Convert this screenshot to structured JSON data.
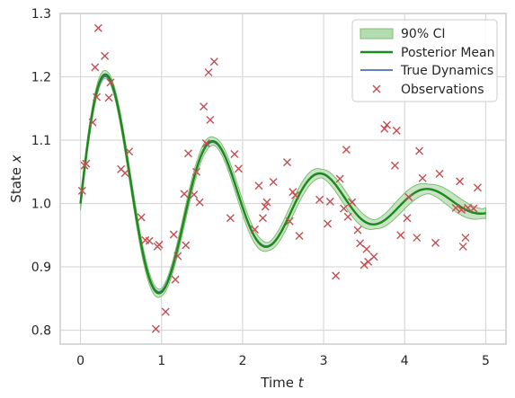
{
  "chart_data": {
    "type": "line",
    "xlabel": "Time",
    "xlabel_symbol": "t",
    "ylabel": "State",
    "ylabel_symbol": "x",
    "xlim": [
      -0.25,
      5.25
    ],
    "ylim": [
      0.778,
      1.3
    ],
    "xticks": [
      "0",
      "1",
      "2",
      "3",
      "4",
      "5"
    ],
    "yticks": [
      "0.8",
      "0.9",
      "1.0",
      "1.1",
      "1.2",
      "1.3"
    ],
    "grid": true,
    "legend_position": "top-right",
    "legend": {
      "ci": "90% CI",
      "mean": "Posterior Mean",
      "truth": "True Dynamics",
      "obs": "Observations"
    },
    "colors": {
      "ci_fill": "#b5dbb0",
      "ci_edge": "#7fbf77",
      "mean": "#1e8a1e",
      "truth": "#4c72b0",
      "obs": "#c44e52",
      "grid": "#d9d9d9",
      "spine": "#cccccc"
    },
    "model": {
      "baseline": 1.0,
      "amplitude": 0.243,
      "decay": 0.55,
      "omega": 4.75,
      "t_min": 0,
      "t_max": 5
    },
    "series": [
      {
        "name": "Observations",
        "x": [
          0.02,
          0.05,
          0.07,
          0.15,
          0.18,
          0.2,
          0.22,
          0.3,
          0.35,
          0.37,
          0.5,
          0.55,
          0.6,
          0.75,
          0.8,
          0.85,
          0.93,
          0.95,
          0.97,
          1.05,
          1.15,
          1.17,
          1.2,
          1.28,
          1.3,
          1.33,
          1.4,
          1.43,
          1.47,
          1.52,
          1.55,
          1.58,
          1.6,
          1.65,
          1.85,
          1.9,
          1.95,
          2.15,
          2.2,
          2.25,
          2.28,
          2.3,
          2.38,
          2.55,
          2.58,
          2.62,
          2.65,
          2.7,
          2.95,
          3.05,
          3.08,
          3.15,
          3.2,
          3.25,
          3.28,
          3.3,
          3.35,
          3.42,
          3.45,
          3.5,
          3.53,
          3.55,
          3.62,
          3.75,
          3.78,
          3.88,
          3.9,
          3.95,
          4.03,
          4.05,
          4.15,
          4.18,
          4.22,
          4.38,
          4.43,
          4.63,
          4.68,
          4.7,
          4.72,
          4.75,
          4.78,
          4.85,
          4.9
        ],
        "y": [
          1.02,
          1.06,
          1.063,
          1.128,
          1.215,
          1.168,
          1.277,
          1.233,
          1.167,
          1.191,
          1.054,
          1.048,
          1.082,
          0.978,
          0.942,
          0.941,
          0.802,
          0.932,
          0.935,
          0.829,
          0.951,
          0.88,
          0.917,
          1.015,
          0.934,
          1.079,
          1.014,
          1.05,
          1.002,
          1.153,
          1.095,
          1.207,
          1.132,
          1.224,
          0.977,
          1.078,
          1.055,
          0.959,
          1.028,
          0.977,
          0.995,
          1.002,
          1.034,
          1.065,
          0.972,
          1.018,
          1.013,
          0.949,
          1.006,
          0.968,
          1.003,
          0.886,
          1.039,
          0.992,
          1.085,
          0.979,
          1.002,
          0.958,
          0.937,
          0.903,
          0.928,
          0.908,
          0.916,
          1.118,
          1.124,
          1.06,
          1.115,
          0.95,
          0.977,
          1.01,
          0.946,
          1.083,
          1.04,
          0.938,
          1.047,
          0.993,
          1.035,
          0.99,
          0.932,
          0.946,
          0.993,
          0.992,
          1.025
        ]
      }
    ]
  }
}
